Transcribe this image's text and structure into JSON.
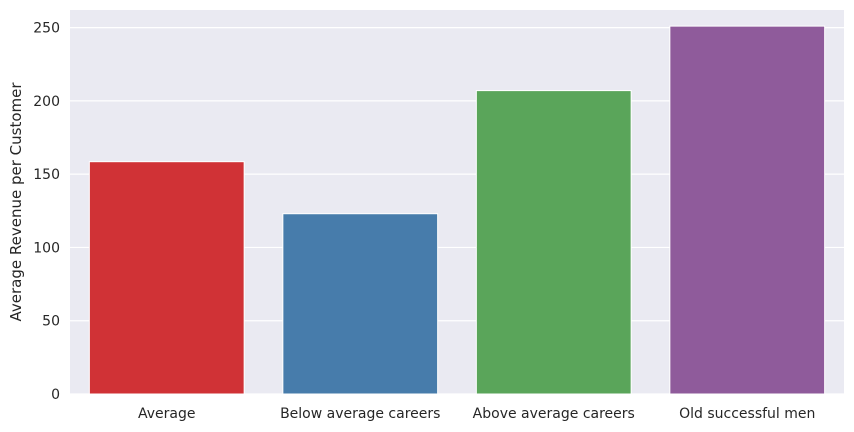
{
  "chart_data": {
    "type": "bar",
    "title": "",
    "xlabel": "",
    "ylabel": "Average Revenue per Customer",
    "categories": [
      "Average",
      "Below average careers",
      "Above average careers",
      "Old successful men"
    ],
    "values": [
      158.5,
      123,
      207,
      251
    ],
    "colors": [
      "#d03236",
      "#477cab",
      "#5aa55a",
      "#8f5b9b"
    ],
    "ylim": [
      0,
      262
    ],
    "yticks": [
      0,
      50,
      100,
      150,
      200,
      250
    ],
    "grid": true,
    "background": "#eaeaf2",
    "grid_color": "#ffffff"
  }
}
